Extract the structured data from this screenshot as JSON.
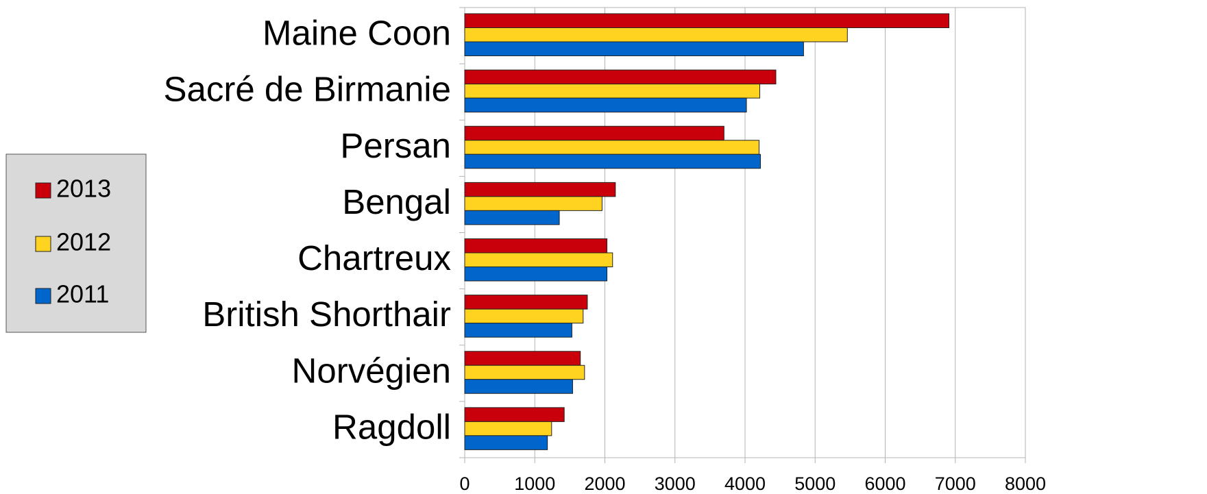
{
  "chart_data": {
    "type": "barh",
    "categories": [
      "Maine Coon",
      "Sacré de Birmanie",
      "Persan",
      "Bengal",
      "Chartreux",
      "British Shorthair",
      "Norvégien",
      "Ragdoll"
    ],
    "series": [
      {
        "name": "2013",
        "color": "#c9000b",
        "values": [
          6910,
          4440,
          3700,
          2150,
          2030,
          1750,
          1650,
          1420
        ]
      },
      {
        "name": "2012",
        "color": "#ffd320",
        "values": [
          5460,
          4210,
          4200,
          1960,
          2110,
          1690,
          1710,
          1240
        ]
      },
      {
        "name": "2011",
        "color": "#0066cc",
        "values": [
          4835,
          4020,
          4220,
          1350,
          2030,
          1530,
          1540,
          1180
        ]
      }
    ],
    "xlim": [
      0,
      8000
    ],
    "xticks": [
      0,
      1000,
      2000,
      3000,
      4000,
      5000,
      6000,
      7000,
      8000
    ],
    "grid": true,
    "legend": "left"
  }
}
